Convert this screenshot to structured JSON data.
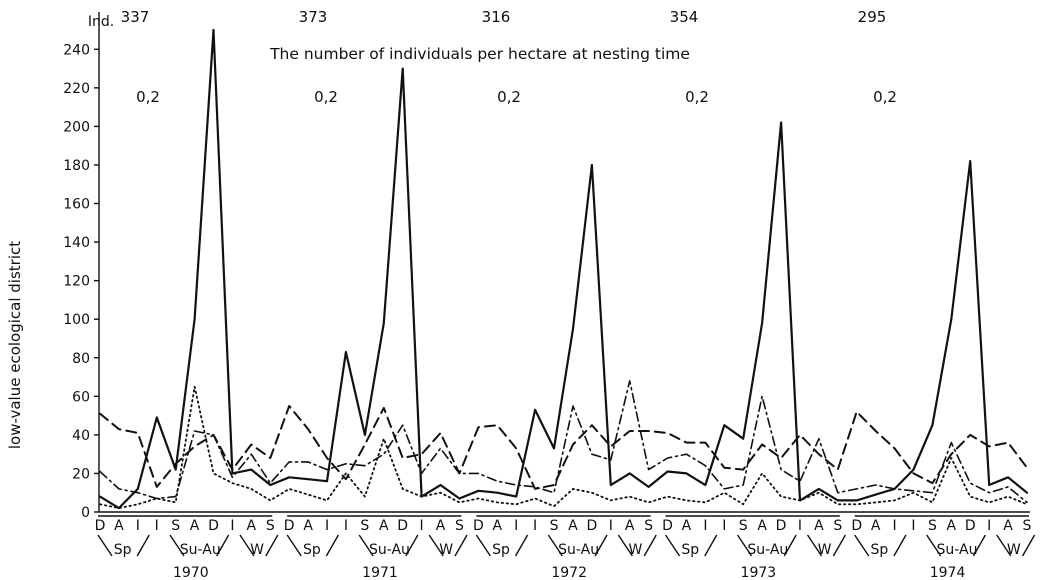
{
  "chart_data": {
    "type": "line",
    "title": "The number of individuals per hectare at nesting time",
    "ylabel": "low-value ecological district",
    "yunit": "Ind.",
    "ylim": [
      0,
      250
    ],
    "yticks": [
      0,
      20,
      40,
      60,
      80,
      100,
      120,
      140,
      160,
      180,
      200,
      220,
      240
    ],
    "grid": false,
    "legend": "none",
    "years": [
      "1970",
      "1971",
      "1972",
      "1973",
      "1974"
    ],
    "months": [
      "D",
      "A",
      "I",
      "I",
      "S",
      "A",
      "D",
      "I",
      "A",
      "S"
    ],
    "seasons": [
      "Sp",
      "Su-Au",
      "W"
    ],
    "nesting_totals": [
      "337",
      "373",
      "316",
      "354",
      "295"
    ],
    "ratios": [
      "0,2",
      "0,2",
      "0,2",
      "0,2",
      "0,2"
    ],
    "series": [
      {
        "style": "solid",
        "values": [
          8,
          2,
          12,
          49,
          22,
          100,
          250,
          20,
          22,
          14,
          18,
          17,
          16,
          83,
          40,
          98,
          230,
          8,
          14,
          7,
          11,
          10,
          8,
          53,
          33,
          95,
          180,
          14,
          20,
          13,
          21,
          20,
          14,
          45,
          38,
          98,
          202,
          6,
          12,
          6,
          6,
          9,
          12,
          22,
          45,
          100,
          182,
          14,
          18,
          10
        ]
      },
      {
        "style": "dashed",
        "values": [
          51,
          43,
          41,
          13,
          25,
          34,
          40,
          22,
          35,
          28,
          55,
          43,
          28,
          17,
          35,
          54,
          28,
          30,
          41,
          20,
          44,
          45,
          33,
          12,
          14,
          35,
          45,
          34,
          42,
          42,
          41,
          36,
          36,
          23,
          22,
          35,
          28,
          40,
          30,
          22,
          52,
          42,
          33,
          20,
          15,
          30,
          40,
          34,
          36,
          23
        ]
      },
      {
        "style": "dash-dot",
        "values": [
          21,
          12,
          10,
          7,
          8,
          42,
          40,
          18,
          30,
          15,
          26,
          26,
          22,
          25,
          24,
          30,
          45,
          20,
          33,
          20,
          20,
          16,
          14,
          13,
          10,
          55,
          30,
          27,
          68,
          22,
          28,
          30,
          24,
          12,
          14,
          60,
          22,
          16,
          38,
          10,
          12,
          14,
          12,
          11,
          10,
          36,
          15,
          10,
          13,
          5
        ]
      },
      {
        "style": "dotted",
        "values": [
          4,
          2,
          4,
          7,
          5,
          65,
          20,
          15,
          12,
          6,
          12,
          9,
          6,
          20,
          8,
          38,
          12,
          8,
          10,
          5,
          7,
          5,
          4,
          7,
          3,
          12,
          10,
          6,
          8,
          5,
          8,
          6,
          5,
          10,
          4,
          20,
          8,
          6,
          10,
          4,
          4,
          5,
          6,
          10,
          5,
          28,
          8,
          5,
          8,
          4
        ]
      }
    ]
  }
}
